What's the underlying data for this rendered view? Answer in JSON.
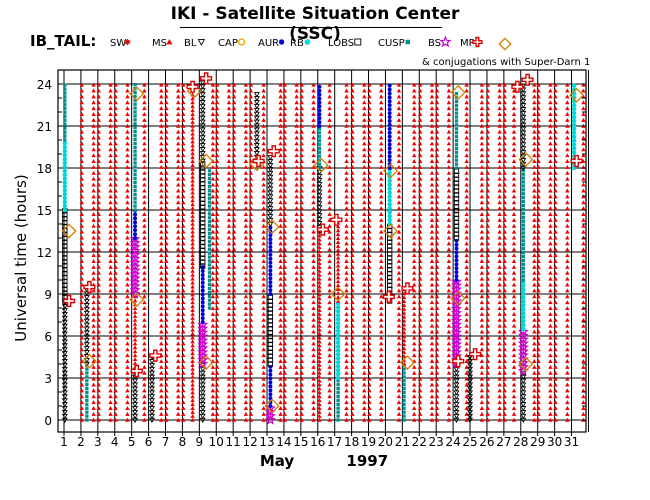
{
  "header": {
    "title": "IKI - Satellite Situation Center (SSC)",
    "dataset": "IB_TAIL:",
    "conjugation_note": "& conjugations with Super-Darn 1"
  },
  "chart_data": {
    "type": "scatter",
    "title": "IKI - Satellite Situation Center (SSC)",
    "xlabel": "May          1997",
    "ylabel": "Universal time (hours)",
    "x_ticks": [
      "1",
      "2",
      "3",
      "4",
      "5",
      "6",
      "7",
      "8",
      "9",
      "10",
      "11",
      "12",
      "13",
      "14",
      "15",
      "16",
      "17",
      "18",
      "19",
      "20",
      "21",
      "22",
      "23",
      "24",
      "25",
      "26",
      "27",
      "28",
      "29",
      "30",
      "31"
    ],
    "y_ticks": [
      "0",
      "3",
      "6",
      "9",
      "12",
      "15",
      "18",
      "21",
      "24"
    ],
    "xlim": [
      1,
      32
    ],
    "ylim": [
      0,
      24
    ],
    "grid": true,
    "legend_position": "top",
    "regions": [
      {
        "code": "SW",
        "color": "#ee0000",
        "symbol": "asterisk"
      },
      {
        "code": "MS",
        "color": "#ee0000",
        "symbol": "triangle-up"
      },
      {
        "code": "BL",
        "color": "#000000",
        "symbol": "triangle-down"
      },
      {
        "code": "CAP",
        "color": "#f0a000",
        "symbol": "octagon"
      },
      {
        "code": "AUR",
        "color": "#0000dd",
        "symbol": "dot"
      },
      {
        "code": "RB",
        "color": "#00d8d8",
        "symbol": "star"
      },
      {
        "code": "LOBS",
        "color": "#000000",
        "symbol": "square"
      },
      {
        "code": "CUSP",
        "color": "#009090",
        "symbol": "small-square"
      },
      {
        "code": "BS",
        "color": "#cc00cc",
        "symbol": "star5"
      },
      {
        "code": "MP",
        "color": "#dd0000",
        "symbol": "cross"
      }
    ],
    "conjugation_symbol": {
      "color": "#d08000",
      "symbol": "diamond"
    },
    "tracks": [
      {
        "x": 1.05,
        "segments": [
          {
            "y": [
              0,
              8.5
            ],
            "region": "BL"
          },
          {
            "y": [
              8.5,
              15
            ],
            "region": "LOBS"
          },
          {
            "y": [
              15,
              20
            ],
            "region": "RB"
          },
          {
            "y": [
              20,
              24
            ],
            "region": "CUSP"
          }
        ]
      },
      {
        "x": 2.35,
        "segments": [
          {
            "y": [
              0,
              4
            ],
            "region": "CUSP"
          },
          {
            "y": [
              4,
              9.5
            ],
            "region": "BL"
          }
        ]
      },
      {
        "x": 5.2,
        "segments": [
          {
            "y": [
              0,
              3.5
            ],
            "region": "BL"
          },
          {
            "y": [
              3.5,
              9
            ],
            "region": "MS"
          },
          {
            "y": [
              9,
              13
            ],
            "region": "BS"
          },
          {
            "y": [
              13,
              15
            ],
            "region": "AUR"
          },
          {
            "y": [
              15,
              24
            ],
            "region": "CUSP"
          }
        ]
      },
      {
        "x": 6.2,
        "segments": [
          {
            "y": [
              0,
              4.5
            ],
            "region": "BL"
          }
        ]
      },
      {
        "x": 8.6,
        "segments": [
          {
            "y": [
              0,
              23.5
            ],
            "region": "MS"
          }
        ]
      },
      {
        "x": 9.2,
        "segments": [
          {
            "y": [
              0,
              4
            ],
            "region": "BL"
          },
          {
            "y": [
              4,
              7
            ],
            "region": "BS"
          },
          {
            "y": [
              7,
              11
            ],
            "region": "AUR"
          },
          {
            "y": [
              11,
              18.5
            ],
            "region": "LOBS"
          },
          {
            "y": [
              18.5,
              24.5
            ],
            "region": "BL"
          }
        ]
      },
      {
        "x": 9.6,
        "segments": [
          {
            "y": [
              8,
              18
            ],
            "region": "CUSP"
          }
        ]
      },
      {
        "x": 12.4,
        "segments": [
          {
            "y": [
              18.5,
              23.5
            ],
            "region": "BL"
          }
        ]
      },
      {
        "x": 13.2,
        "segments": [
          {
            "y": [
              0,
              1
            ],
            "region": "BS"
          },
          {
            "y": [
              1,
              4
            ],
            "region": "AUR"
          },
          {
            "y": [
              4,
              9
            ],
            "region": "LOBS"
          },
          {
            "y": [
              9,
              14
            ],
            "region": "AUR"
          },
          {
            "y": [
              14,
              19
            ],
            "region": "BL"
          }
        ]
      },
      {
        "x": 16.1,
        "segments": [
          {
            "y": [
              0,
              13.5
            ],
            "region": "MS"
          },
          {
            "y": [
              13.5,
              18
            ],
            "region": "BL"
          },
          {
            "y": [
              18,
              21
            ],
            "region": "CUSP"
          },
          {
            "y": [
              21,
              24
            ],
            "region": "AUR"
          }
        ]
      },
      {
        "x": 17.2,
        "segments": [
          {
            "y": [
              0,
              3
            ],
            "region": "CUSP"
          },
          {
            "y": [
              3,
              8.5
            ],
            "region": "RB"
          },
          {
            "y": [
              8.5,
              14.5
            ],
            "region": "MS"
          }
        ]
      },
      {
        "x": 20.25,
        "segments": [
          {
            "y": [
              8.5,
              14
            ],
            "region": "LOBS"
          },
          {
            "y": [
              14,
              18
            ],
            "region": "RB"
          },
          {
            "y": [
              18,
              24
            ],
            "region": "AUR"
          }
        ]
      },
      {
        "x": 21.1,
        "segments": [
          {
            "y": [
              0,
              4
            ],
            "region": "CUSP"
          },
          {
            "y": [
              4,
              9.5
            ],
            "region": "MS"
          }
        ]
      },
      {
        "x": 24.2,
        "segments": [
          {
            "y": [
              0,
              4
            ],
            "region": "BL"
          },
          {
            "y": [
              4,
              10
            ],
            "region": "BS"
          },
          {
            "y": [
              10,
              13
            ],
            "region": "AUR"
          },
          {
            "y": [
              13,
              18
            ],
            "region": "LOBS"
          },
          {
            "y": [
              18,
              23.5
            ],
            "region": "CUSP"
          }
        ]
      },
      {
        "x": 25.0,
        "segments": [
          {
            "y": [
              0,
              4.5
            ],
            "region": "BL"
          }
        ]
      },
      {
        "x": 28.15,
        "segments": [
          {
            "y": [
              0,
              3.5
            ],
            "region": "BL"
          },
          {
            "y": [
              3.5,
              6.5
            ],
            "region": "BS"
          },
          {
            "y": [
              6.5,
              10
            ],
            "region": "RB"
          },
          {
            "y": [
              10,
              18
            ],
            "region": "CUSP"
          },
          {
            "y": [
              18,
              24
            ],
            "region": "BL"
          }
        ]
      },
      {
        "x": 31.15,
        "segments": [
          {
            "y": [
              18,
              24
            ],
            "region": "RB"
          }
        ]
      }
    ],
    "mp_crossings": [
      {
        "x": 1.3,
        "y": 8.5
      },
      {
        "x": 2.5,
        "y": 9.5
      },
      {
        "x": 5.3,
        "y": 3.5
      },
      {
        "x": 6.4,
        "y": 4.6
      },
      {
        "x": 8.6,
        "y": 23.8
      },
      {
        "x": 9.4,
        "y": 24.4
      },
      {
        "x": 12.5,
        "y": 18.5
      },
      {
        "x": 13.4,
        "y": 19.2
      },
      {
        "x": 16.3,
        "y": 13.6
      },
      {
        "x": 17.1,
        "y": 14.3
      },
      {
        "x": 20.2,
        "y": 8.8
      },
      {
        "x": 21.3,
        "y": 9.4
      },
      {
        "x": 24.3,
        "y": 4.2
      },
      {
        "x": 25.3,
        "y": 4.7
      },
      {
        "x": 27.8,
        "y": 23.8
      },
      {
        "x": 28.4,
        "y": 24.3
      },
      {
        "x": 31.3,
        "y": 18.5
      }
    ],
    "conjugations": [
      {
        "x": 1.3,
        "y": 13.5
      },
      {
        "x": 2.5,
        "y": 4.2
      },
      {
        "x": 5.3,
        "y": 23.3
      },
      {
        "x": 5.3,
        "y": 8.6
      },
      {
        "x": 8.7,
        "y": 23.5
      },
      {
        "x": 9.4,
        "y": 18.5
      },
      {
        "x": 9.4,
        "y": 4.1
      },
      {
        "x": 12.4,
        "y": 18.3
      },
      {
        "x": 13.3,
        "y": 13.8
      },
      {
        "x": 13.3,
        "y": 1.0
      },
      {
        "x": 16.2,
        "y": 18.2
      },
      {
        "x": 17.2,
        "y": 9.0
      },
      {
        "x": 20.3,
        "y": 13.5
      },
      {
        "x": 20.3,
        "y": 17.8
      },
      {
        "x": 21.3,
        "y": 4.1
      },
      {
        "x": 24.3,
        "y": 23.4
      },
      {
        "x": 24.3,
        "y": 8.7
      },
      {
        "x": 28.3,
        "y": 18.6
      },
      {
        "x": 28.3,
        "y": 4.0
      },
      {
        "x": 31.3,
        "y": 23.2
      }
    ],
    "dense_points": [
      {
        "x": 2.05,
        "region": "SW"
      },
      {
        "x": 2.75,
        "region": "SW"
      },
      {
        "x": 3.05,
        "region": "SW"
      },
      {
        "x": 3.75,
        "region": "SW"
      },
      {
        "x": 4.05,
        "region": "SW"
      },
      {
        "x": 4.75,
        "region": "SW"
      },
      {
        "x": 5.75,
        "region": "SW"
      },
      {
        "x": 6.75,
        "region": "SW"
      },
      {
        "x": 7.05,
        "region": "SW"
      },
      {
        "x": 7.75,
        "region": "SW"
      },
      {
        "x": 8.05,
        "region": "SW"
      },
      {
        "x": 9.8,
        "region": "SW"
      },
      {
        "x": 10.05,
        "region": "SW"
      },
      {
        "x": 10.75,
        "region": "SW"
      },
      {
        "x": 11.05,
        "region": "SW"
      },
      {
        "x": 11.75,
        "region": "SW"
      },
      {
        "x": 12.05,
        "region": "SW"
      },
      {
        "x": 12.8,
        "region": "SW"
      },
      {
        "x": 13.8,
        "region": "SW"
      },
      {
        "x": 14.05,
        "region": "SW"
      },
      {
        "x": 14.75,
        "region": "SW"
      },
      {
        "x": 15.05,
        "region": "SW"
      },
      {
        "x": 15.75,
        "region": "SW"
      },
      {
        "x": 16.7,
        "region": "SW"
      },
      {
        "x": 17.7,
        "region": "SW"
      },
      {
        "x": 18.05,
        "region": "SW"
      },
      {
        "x": 18.75,
        "region": "SW"
      },
      {
        "x": 19.05,
        "region": "SW"
      },
      {
        "x": 19.75,
        "region": "SW"
      },
      {
        "x": 20.8,
        "region": "SW"
      },
      {
        "x": 21.7,
        "region": "SW"
      },
      {
        "x": 22.05,
        "region": "SW"
      },
      {
        "x": 22.75,
        "region": "SW"
      },
      {
        "x": 23.05,
        "region": "SW"
      },
      {
        "x": 23.75,
        "region": "SW"
      },
      {
        "x": 24.8,
        "region": "SW"
      },
      {
        "x": 25.7,
        "region": "SW"
      },
      {
        "x": 26.05,
        "region": "SW"
      },
      {
        "x": 26.75,
        "region": "SW"
      },
      {
        "x": 27.05,
        "region": "SW"
      },
      {
        "x": 27.6,
        "region": "SW"
      },
      {
        "x": 28.8,
        "region": "SW"
      },
      {
        "x": 29.05,
        "region": "SW"
      },
      {
        "x": 29.75,
        "region": "SW"
      },
      {
        "x": 30.05,
        "region": "SW"
      },
      {
        "x": 30.75,
        "region": "SW"
      },
      {
        "x": 31.7,
        "region": "SW"
      }
    ]
  }
}
